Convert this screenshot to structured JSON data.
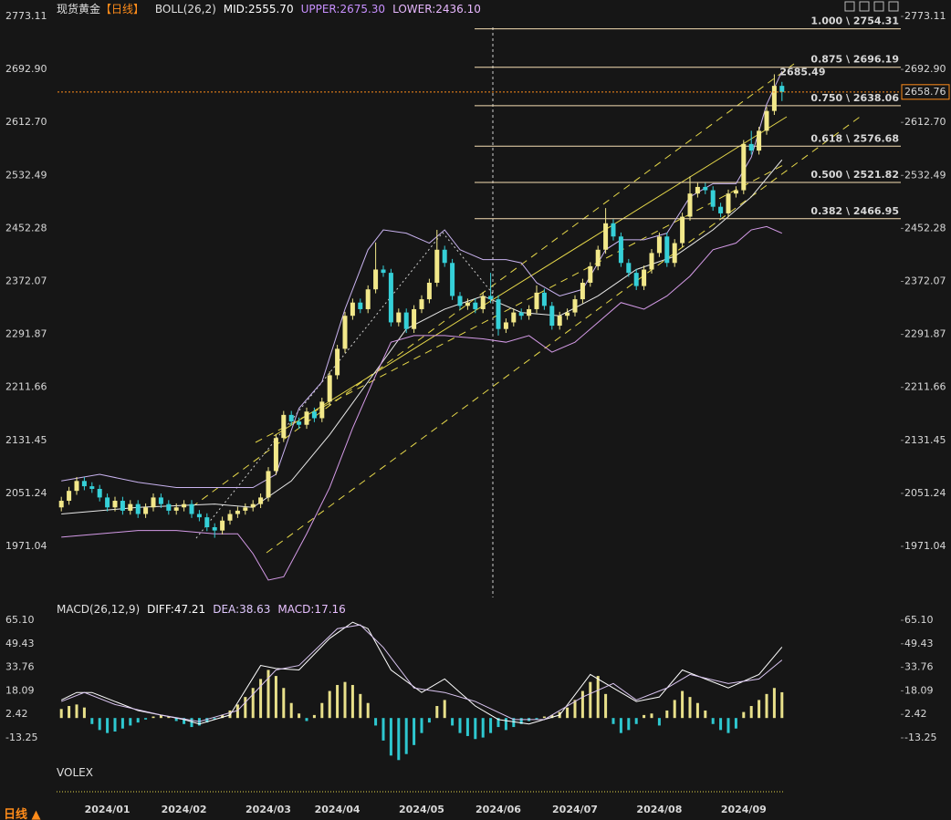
{
  "tab": "日线",
  "volume_panel": {
    "title": "VOLEX"
  },
  "chart_data": [
    {
      "type": "candlestick",
      "title": "现货黄金",
      "period": "【日线】",
      "indicator": "BOLL(26,2)",
      "indicator_values": [
        "MID:2555.70",
        "UPPER:2675.30",
        "LOWER:2436.10"
      ],
      "indicator_colors": [
        "#ffffff",
        "#c890ff",
        "#e8b8ff"
      ],
      "categories": [
        null,
        null,
        null,
        null,
        null,
        null,
        "2024/01",
        null,
        null,
        null,
        null,
        null,
        null,
        null,
        null,
        null,
        "2024/02",
        null,
        null,
        null,
        null,
        null,
        null,
        null,
        null,
        null,
        null,
        "2024/03",
        null,
        null,
        null,
        null,
        null,
        null,
        null,
        null,
        "2024/04",
        null,
        null,
        null,
        null,
        null,
        null,
        null,
        null,
        null,
        null,
        "2024/05",
        null,
        null,
        null,
        null,
        null,
        null,
        null,
        null,
        null,
        "2024/06",
        null,
        null,
        null,
        null,
        null,
        null,
        null,
        null,
        null,
        "2024/07",
        null,
        null,
        null,
        null,
        null,
        null,
        null,
        null,
        null,
        null,
        "2024/08",
        null,
        null,
        null,
        null,
        null,
        null,
        null,
        null,
        null,
        null,
        "2024/09",
        null,
        null,
        null,
        null,
        null
      ],
      "open": [
        2030,
        2040,
        2055,
        2070,
        2062,
        2058,
        2045,
        2030,
        2040,
        2025,
        2035,
        2020,
        2030,
        2045,
        2035,
        2025,
        2030,
        2035,
        2020,
        2015,
        2000,
        1995,
        2010,
        2020,
        2025,
        2030,
        2035,
        2045,
        2085,
        2135,
        2170,
        2160,
        2155,
        2175,
        2165,
        2190,
        2230,
        2270,
        2320,
        2340,
        2330,
        2360,
        2390,
        2385,
        2310,
        2325,
        2300,
        2330,
        2345,
        2370,
        2420,
        2400,
        2350,
        2335,
        2340,
        2330,
        2350,
        2345,
        2300,
        2310,
        2325,
        2320,
        2330,
        2355,
        2335,
        2305,
        2320,
        2325,
        2345,
        2370,
        2395,
        2420,
        2460,
        2440,
        2400,
        2385,
        2365,
        2390,
        2415,
        2440,
        2400,
        2430,
        2470,
        2505,
        2515,
        2510,
        2485,
        2475,
        2505,
        2510,
        2580,
        2570,
        2600,
        2630,
        2668
      ],
      "high": [
        2046,
        2061,
        2076,
        2076,
        2068,
        2064,
        2051,
        2046,
        2046,
        2041,
        2041,
        2036,
        2051,
        2051,
        2041,
        2036,
        2041,
        2041,
        2026,
        2021,
        2006,
        2016,
        2026,
        2031,
        2036,
        2041,
        2051,
        2091,
        2141,
        2176,
        2176,
        2166,
        2181,
        2181,
        2196,
        2236,
        2276,
        2326,
        2346,
        2346,
        2366,
        2431,
        2396,
        2391,
        2331,
        2331,
        2336,
        2351,
        2376,
        2450,
        2426,
        2406,
        2356,
        2346,
        2346,
        2356,
        2385,
        2351,
        2316,
        2331,
        2331,
        2336,
        2366,
        2361,
        2341,
        2326,
        2331,
        2351,
        2376,
        2401,
        2426,
        2483,
        2466,
        2446,
        2406,
        2391,
        2396,
        2421,
        2446,
        2446,
        2436,
        2476,
        2531,
        2521,
        2521,
        2516,
        2491,
        2511,
        2516,
        2586,
        2600,
        2606,
        2636,
        2685.49,
        2674
      ],
      "low": [
        2024,
        2034,
        2049,
        2056,
        2052,
        2039,
        2024,
        2024,
        2019,
        2019,
        2014,
        2014,
        2024,
        2029,
        2019,
        2019,
        2024,
        2014,
        2009,
        1994,
        1984,
        1989,
        2004,
        2014,
        2019,
        2024,
        2029,
        2039,
        2079,
        2129,
        2154,
        2149,
        2149,
        2159,
        2159,
        2184,
        2224,
        2264,
        2314,
        2324,
        2324,
        2354,
        2379,
        2304,
        2304,
        2294,
        2294,
        2324,
        2339,
        2364,
        2394,
        2344,
        2329,
        2329,
        2324,
        2324,
        2339,
        2290,
        2294,
        2304,
        2314,
        2314,
        2324,
        2329,
        2299,
        2299,
        2314,
        2319,
        2339,
        2364,
        2389,
        2414,
        2434,
        2394,
        2379,
        2359,
        2359,
        2384,
        2409,
        2394,
        2394,
        2424,
        2464,
        2499,
        2504,
        2479,
        2469,
        2469,
        2499,
        2504,
        2564,
        2564,
        2594,
        2624,
        2645
      ],
      "close": [
        2040,
        2055,
        2070,
        2062,
        2058,
        2045,
        2030,
        2040,
        2025,
        2035,
        2020,
        2030,
        2045,
        2035,
        2025,
        2030,
        2035,
        2020,
        2015,
        2000,
        1995,
        2010,
        2020,
        2025,
        2030,
        2035,
        2045,
        2085,
        2135,
        2170,
        2160,
        2155,
        2175,
        2165,
        2190,
        2230,
        2270,
        2320,
        2340,
        2330,
        2360,
        2390,
        2385,
        2310,
        2325,
        2300,
        2330,
        2345,
        2370,
        2420,
        2400,
        2350,
        2335,
        2340,
        2330,
        2350,
        2345,
        2300,
        2310,
        2325,
        2320,
        2330,
        2355,
        2335,
        2305,
        2320,
        2325,
        2345,
        2370,
        2395,
        2420,
        2460,
        2440,
        2400,
        2385,
        2365,
        2390,
        2415,
        2440,
        2400,
        2430,
        2470,
        2505,
        2515,
        2510,
        2485,
        2475,
        2505,
        2510,
        2580,
        2570,
        2600,
        2630,
        2668,
        2658.76
      ],
      "up_color": "#f2e88a",
      "down_color": "#35d0d8",
      "bollinger": [
        {
          "color": "#c9b3f0",
          "x": [
            0,
            5,
            10,
            15,
            20,
            25,
            28,
            31,
            34,
            37,
            40,
            42,
            45,
            48,
            50,
            52,
            55,
            58,
            60,
            62,
            65,
            68,
            71,
            73,
            76,
            79,
            82,
            85,
            88,
            90,
            92,
            94
          ],
          "values": [
            2070,
            2080,
            2068,
            2060,
            2060,
            2060,
            2080,
            2180,
            2220,
            2330,
            2420,
            2450,
            2445,
            2430,
            2450,
            2420,
            2405,
            2405,
            2400,
            2370,
            2350,
            2360,
            2420,
            2435,
            2435,
            2445,
            2500,
            2520,
            2520,
            2560,
            2640,
            2690
          ]
        },
        {
          "color": "#e8e8e8",
          "x": [
            0,
            10,
            20,
            25,
            30,
            35,
            40,
            45,
            50,
            55,
            60,
            65,
            70,
            75,
            80,
            85,
            90,
            94
          ],
          "values": [
            2020,
            2030,
            2035,
            2030,
            2070,
            2140,
            2220,
            2300,
            2330,
            2350,
            2325,
            2320,
            2350,
            2390,
            2410,
            2450,
            2500,
            2556
          ]
        },
        {
          "color": "#d59be8",
          "x": [
            0,
            5,
            10,
            15,
            20,
            23,
            25,
            27,
            29,
            32,
            35,
            38,
            41,
            43,
            46,
            50,
            55,
            58,
            61,
            64,
            67,
            70,
            73,
            76,
            79,
            82,
            85,
            88,
            90,
            92,
            94
          ],
          "values": [
            1985,
            1990,
            1995,
            1995,
            1990,
            1990,
            1960,
            1920,
            1925,
            1990,
            2060,
            2150,
            2230,
            2280,
            2290,
            2290,
            2285,
            2280,
            2290,
            2265,
            2280,
            2310,
            2340,
            2330,
            2350,
            2380,
            2420,
            2430,
            2450,
            2455,
            2445
          ]
        }
      ],
      "fibonacci": [
        {
          "value": 2754.31,
          "label": "1.000 \\ 2754.31"
        },
        {
          "value": 2696.19,
          "label": "0.875 \\ 2696.19"
        },
        {
          "value": 2638.06,
          "label": "0.750 \\ 2638.06"
        },
        {
          "value": 2576.68,
          "label": "0.618 \\ 2576.68"
        },
        {
          "value": 2521.82,
          "label": "0.500 \\ 2521.82"
        },
        {
          "value": 2466.95,
          "label": "0.382 \\ 2466.95"
        }
      ],
      "fib_color": "#f5deb3",
      "max_label": 2685.49,
      "last_price": 2658.76,
      "last_color": "#ff8c1a",
      "ylim": [
        1893.7,
        2786.9
      ],
      "yticks": [
        2773.11,
        {
          "value": 2692.9,
          "label": "2692.90"
        },
        {
          "value": 2612.7,
          "label": "2612.70"
        },
        2532.49,
        2452.28,
        2372.07,
        2291.87,
        2211.66,
        2131.45,
        2051.24,
        1971.04
      ]
    },
    {
      "type": "macd",
      "title": "MACD(26,12,9)",
      "legend": [
        "DIFF:47.21",
        "DEA:38.63",
        "MACD:17.16"
      ],
      "legend_colors": [
        "#ffffff",
        "#e0c8ff",
        "#e8c0ff"
      ],
      "histogram": {
        "values": [
          6,
          8,
          9,
          7,
          -4,
          -8,
          -10,
          -9,
          -7,
          -5,
          -3,
          -1,
          1,
          2,
          1,
          -2,
          -4,
          -6,
          -5,
          -3,
          -1,
          2,
          5,
          9,
          14,
          20,
          26,
          32,
          28,
          20,
          10,
          3,
          -2,
          2,
          10,
          18,
          22,
          24,
          22,
          16,
          10,
          -5,
          -15,
          -25,
          -28,
          -24,
          -18,
          -10,
          -3,
          8,
          12,
          -5,
          -10,
          -12,
          -14,
          -13,
          -10,
          -6,
          -8,
          -6,
          -4,
          -2,
          -1,
          1,
          2,
          4,
          7,
          12,
          18,
          24,
          28,
          16,
          -4,
          -10,
          -8,
          -4,
          2,
          3,
          -5,
          5,
          12,
          18,
          14,
          10,
          5,
          -4,
          -8,
          -10,
          -7,
          4,
          8,
          12,
          16,
          20,
          17.16
        ],
        "up_color": "#e8e08a",
        "down_color": "#2ec8d0"
      },
      "series": [
        {
          "color": "#ffffff",
          "x": [
            0,
            2,
            4,
            10,
            16,
            18,
            22,
            26,
            28,
            31,
            35,
            38,
            40,
            43,
            47,
            50,
            54,
            57,
            61,
            65,
            69,
            72,
            75,
            78,
            81,
            84,
            87,
            91,
            94
          ],
          "values": [
            12,
            17,
            17,
            5,
            -1,
            -4,
            2,
            35,
            33,
            32,
            53,
            63.8,
            59.5,
            32,
            17,
            26,
            8,
            -1,
            -4,
            2,
            29,
            20,
            11,
            14,
            32,
            26,
            20,
            29,
            47.21
          ]
        },
        {
          "color": "#d9c4f0",
          "x": [
            0,
            3,
            7,
            13,
            18,
            23,
            28,
            31,
            36,
            39,
            42,
            46,
            50,
            54,
            59,
            63,
            68,
            72,
            75,
            79,
            82,
            87,
            91,
            94
          ],
          "values": [
            11,
            17,
            9,
            2,
            -2.4,
            5,
            32,
            35,
            59.5,
            62,
            47,
            20,
            17,
            11,
            -1,
            -1,
            14,
            23,
            12,
            20,
            29,
            23,
            26,
            38.63
          ]
        }
      ],
      "ylim": [
        -32.07,
        77.24
      ],
      "yticks": [
        {
          "value": 65.1,
          "label": "65.10"
        },
        49.43,
        33.76,
        18.09,
        2.42,
        -13.25
      ]
    }
  ]
}
